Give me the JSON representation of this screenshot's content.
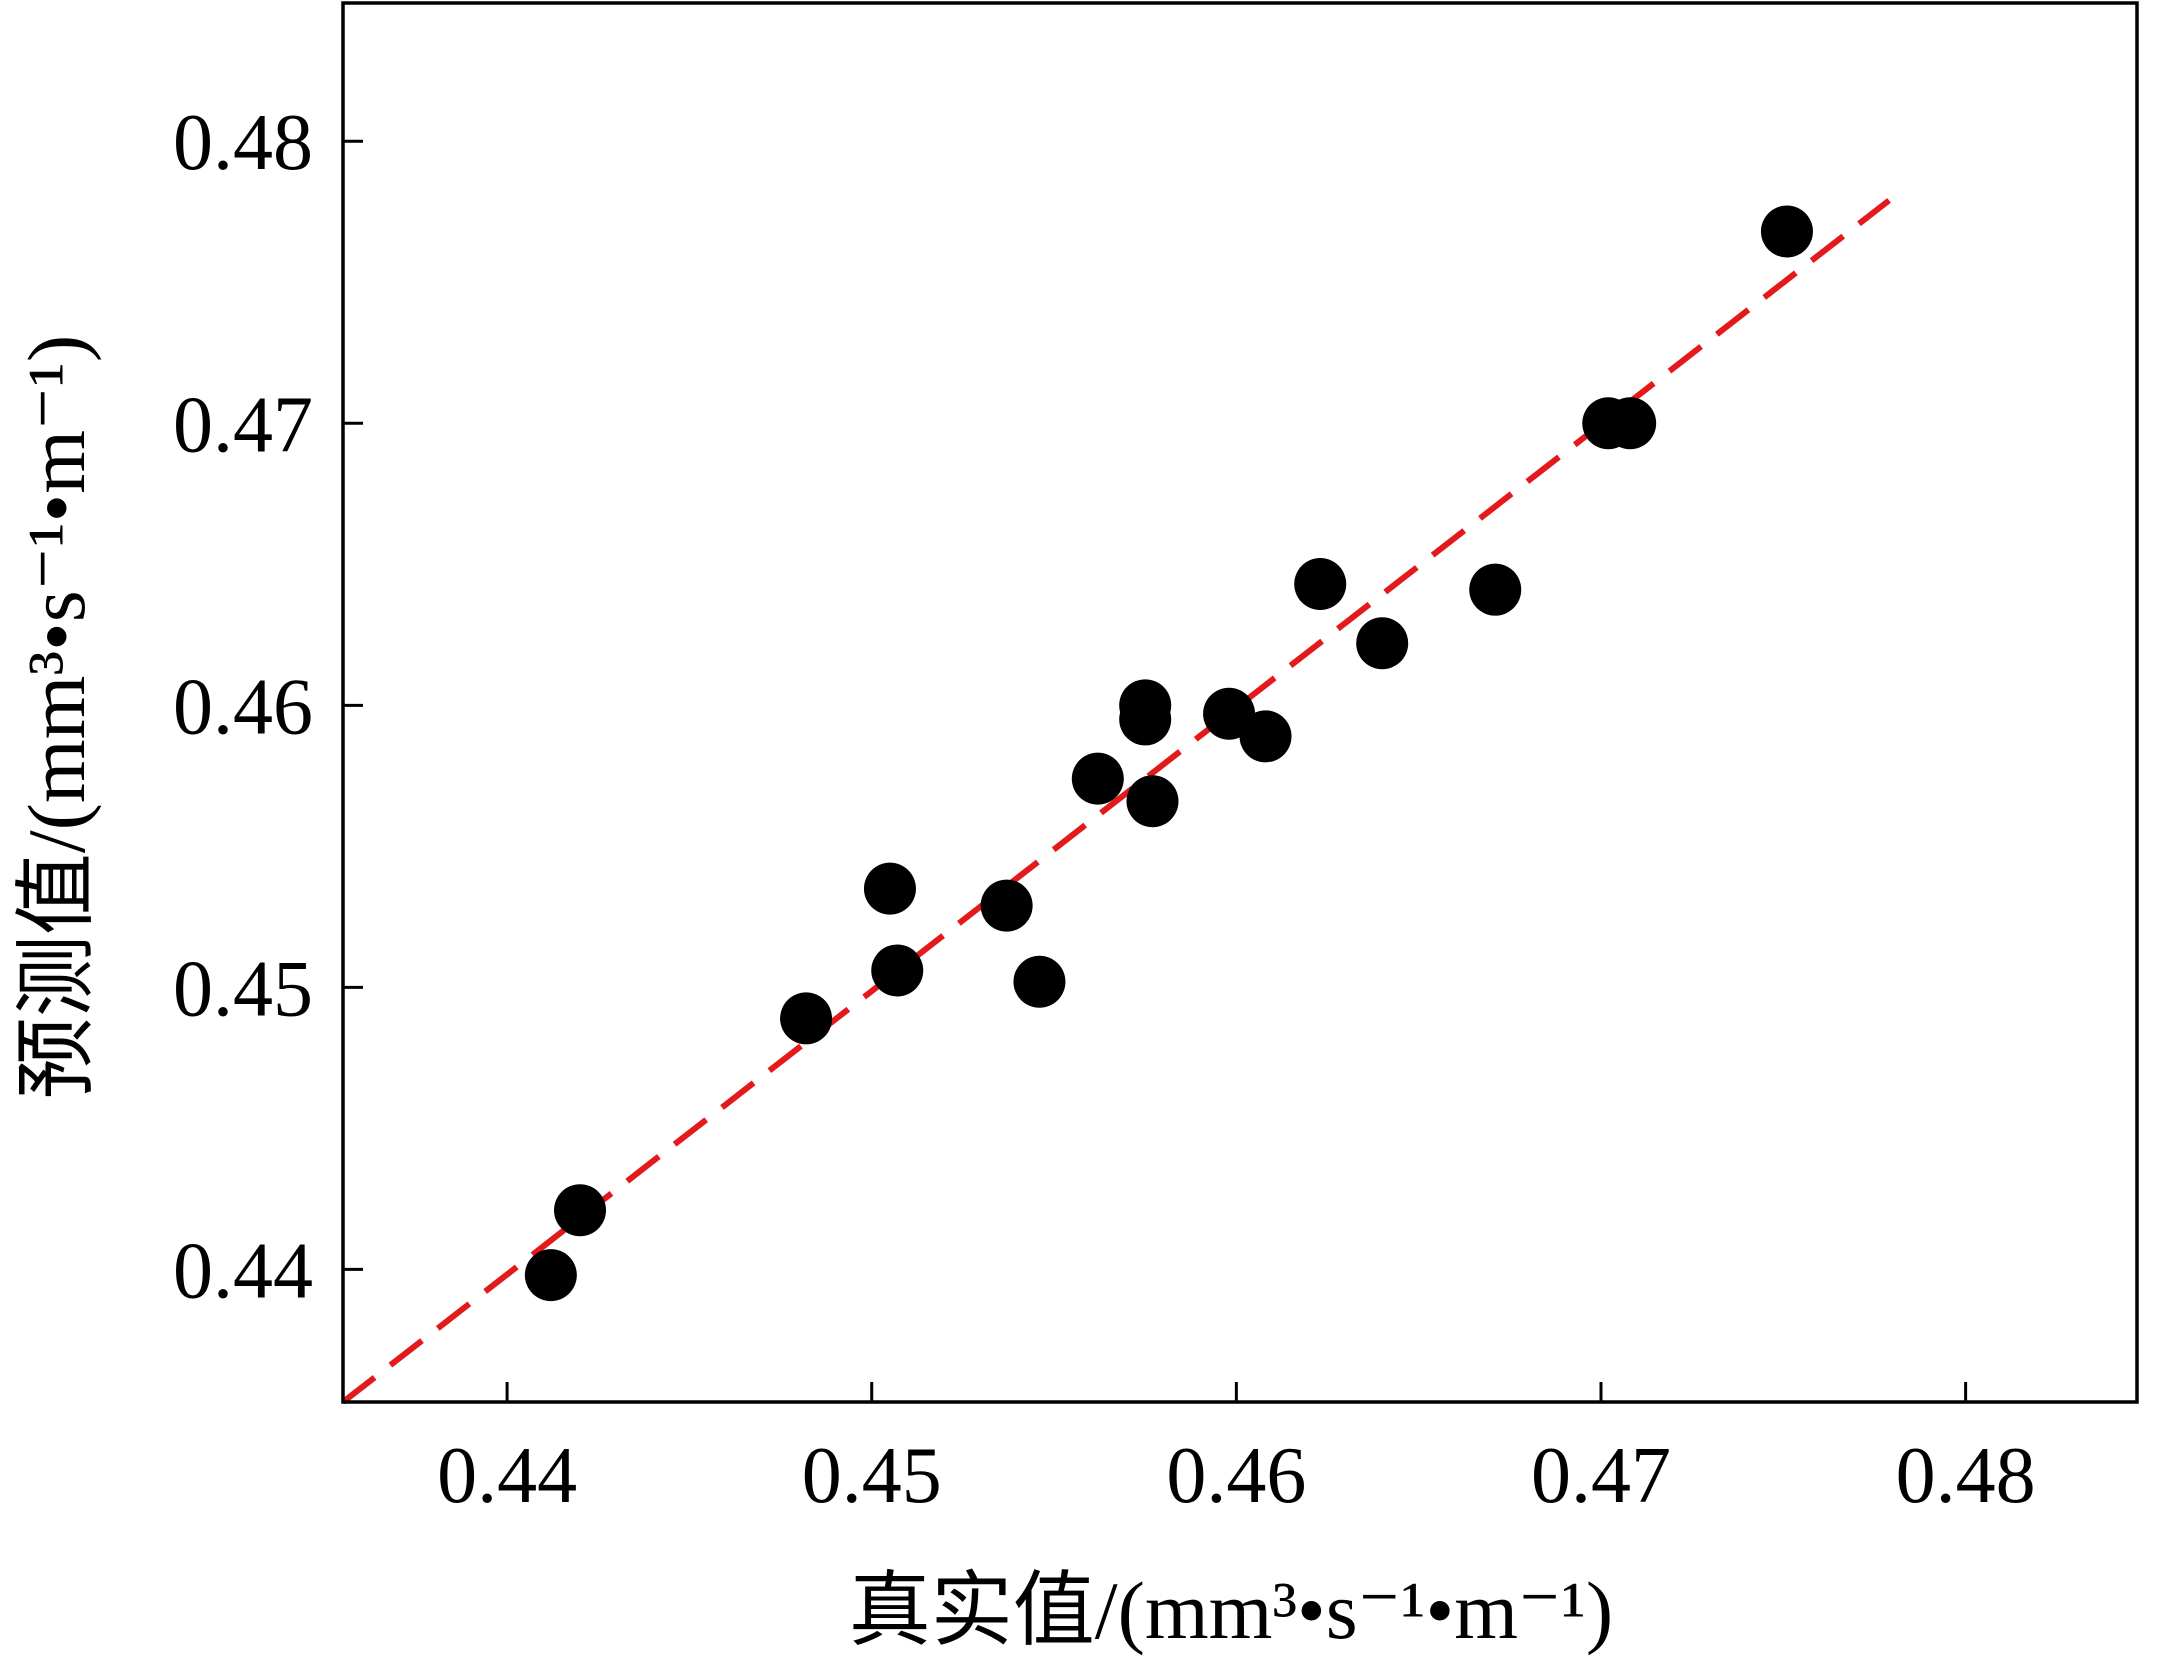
{
  "chart_data": {
    "type": "scatter",
    "title": "",
    "xlabel": "真实值/(mm³•s⁻¹•m⁻¹)",
    "ylabel": "预测值/(mm³•s⁻¹•m⁻¹)",
    "xlim": [
      0.4355,
      0.4847
    ],
    "ylim": [
      0.4353,
      0.4849
    ],
    "x_ticks": [
      "0.44",
      "0.45",
      "0.46",
      "0.47",
      "0.48"
    ],
    "y_ticks": [
      "0.44",
      "0.45",
      "0.46",
      "0.47",
      "0.48"
    ],
    "grid": false,
    "marker_color": "#000000",
    "fit_line": {
      "style": "dashed",
      "color": "#e3191c",
      "x": [
        0.4355,
        0.4779
      ],
      "y": [
        0.4353,
        0.4779
      ]
    },
    "points": [
      {
        "x": 0.4412,
        "y": 0.4398
      },
      {
        "x": 0.442,
        "y": 0.4421
      },
      {
        "x": 0.4482,
        "y": 0.4489
      },
      {
        "x": 0.4505,
        "y": 0.4535
      },
      {
        "x": 0.4507,
        "y": 0.4506
      },
      {
        "x": 0.4537,
        "y": 0.4529
      },
      {
        "x": 0.4546,
        "y": 0.4502
      },
      {
        "x": 0.4562,
        "y": 0.4574
      },
      {
        "x": 0.4575,
        "y": 0.46
      },
      {
        "x": 0.4575,
        "y": 0.4595
      },
      {
        "x": 0.4577,
        "y": 0.4566
      },
      {
        "x": 0.4598,
        "y": 0.4597
      },
      {
        "x": 0.4608,
        "y": 0.4589
      },
      {
        "x": 0.4623,
        "y": 0.4643
      },
      {
        "x": 0.464,
        "y": 0.4622
      },
      {
        "x": 0.4671,
        "y": 0.4641
      },
      {
        "x": 0.4702,
        "y": 0.47
      },
      {
        "x": 0.4708,
        "y": 0.47
      },
      {
        "x": 0.4751,
        "y": 0.4768
      }
    ]
  }
}
